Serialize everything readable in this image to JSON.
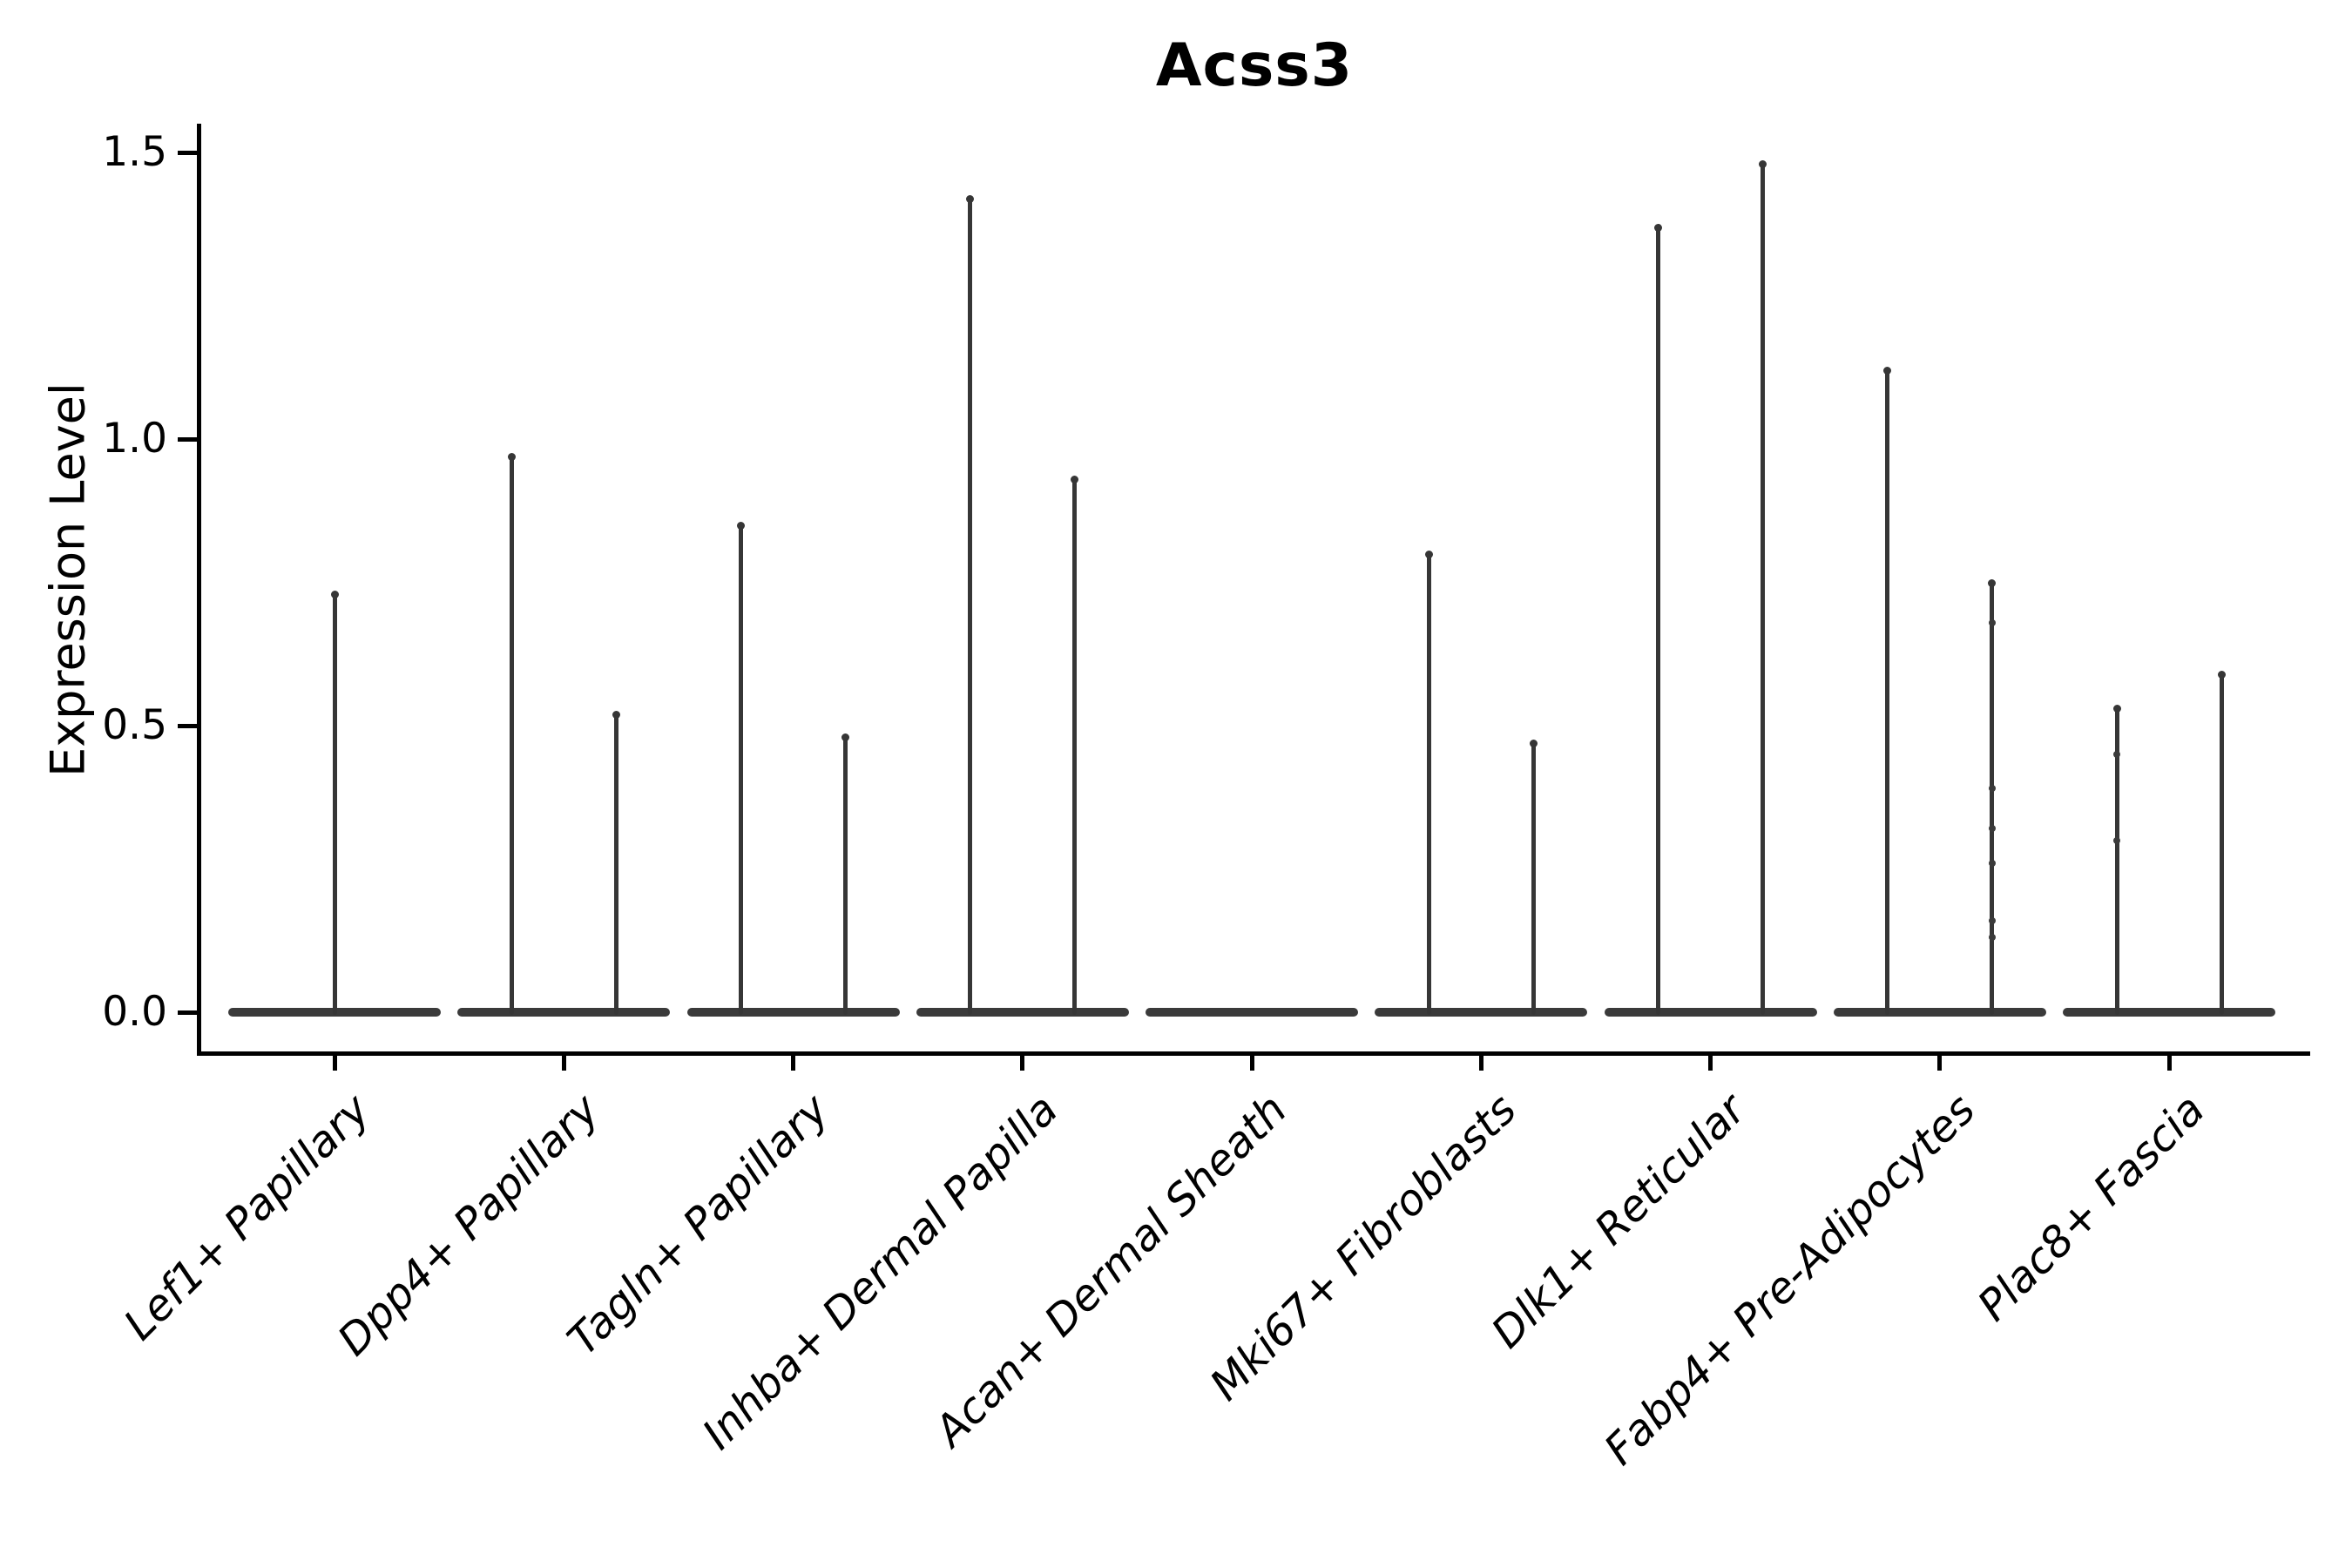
{
  "title": "Acss3",
  "y_axis": {
    "label": "Expression Level",
    "tick_labels": [
      "0.0",
      "0.5",
      "1.0",
      "1.5"
    ]
  },
  "chart_data": {
    "type": "violin",
    "title": "Acss3",
    "xlabel": "",
    "ylabel": "Expression Level",
    "ylim": [
      -0.07,
      1.55
    ],
    "yticks": [
      0.0,
      0.5,
      1.0,
      1.5
    ],
    "grid": false,
    "legend": "none",
    "description": "Violin plot of Acss3 expression per fibroblast subtype; expression is near zero for most cells so each violin collapses to a wide flat base at 0 with thin spikes rising to the maximum expressing cells. Most categories show two violins side by side.",
    "categories": [
      "Lef1+ Papillary",
      "Dpp4+ Papillary",
      "Tagln+ Papillary",
      "Inhba+ Dermal Papilla",
      "Acan+ Dermal Sheath",
      "Mki67+ Fibroblasts",
      "Dlk1+ Reticular",
      "Fabp4+ Pre-Adipocytes",
      "Plac8+ Fascia"
    ],
    "violins": [
      {
        "category": "Lef1+ Papillary",
        "base_at": 0,
        "spikes": [
          {
            "pos": "center",
            "max": 0.73,
            "points": []
          }
        ]
      },
      {
        "category": "Dpp4+ Papillary",
        "base_at": 0,
        "spikes": [
          {
            "pos": "left",
            "max": 0.97,
            "points": []
          },
          {
            "pos": "right",
            "max": 0.52,
            "points": []
          }
        ]
      },
      {
        "category": "Tagln+ Papillary",
        "base_at": 0,
        "spikes": [
          {
            "pos": "left",
            "max": 0.85,
            "points": []
          },
          {
            "pos": "right",
            "max": 0.48,
            "points": []
          }
        ]
      },
      {
        "category": "Inhba+ Dermal Papilla",
        "base_at": 0,
        "spikes": [
          {
            "pos": "left",
            "max": 1.42,
            "points": []
          },
          {
            "pos": "right",
            "max": 0.93,
            "points": []
          }
        ]
      },
      {
        "category": "Acan+ Dermal Sheath",
        "base_at": 0,
        "spikes": []
      },
      {
        "category": "Mki67+ Fibroblasts",
        "base_at": 0,
        "spikes": [
          {
            "pos": "left",
            "max": 0.8,
            "points": []
          },
          {
            "pos": "right",
            "max": 0.47,
            "points": []
          }
        ]
      },
      {
        "category": "Dlk1+ Reticular",
        "base_at": 0,
        "spikes": [
          {
            "pos": "left",
            "max": 1.37,
            "points": []
          },
          {
            "pos": "right",
            "max": 1.48,
            "points": []
          }
        ]
      },
      {
        "category": "Fabp4+ Pre-Adipocytes",
        "base_at": 0,
        "spikes": [
          {
            "pos": "left",
            "max": 1.12,
            "points": []
          },
          {
            "pos": "right",
            "max": 0.75,
            "points": [
              0.68,
              0.39,
              0.32,
              0.26,
              0.16,
              0.13
            ]
          }
        ]
      },
      {
        "category": "Plac8+ Fascia",
        "base_at": 0,
        "spikes": [
          {
            "pos": "left",
            "max": 0.53,
            "points": [
              0.45,
              0.3
            ]
          },
          {
            "pos": "right",
            "max": 0.59,
            "points": []
          }
        ]
      }
    ],
    "colors": {
      "violin": "#3a3a3a",
      "axis": "#000000",
      "background": "#ffffff"
    }
  }
}
